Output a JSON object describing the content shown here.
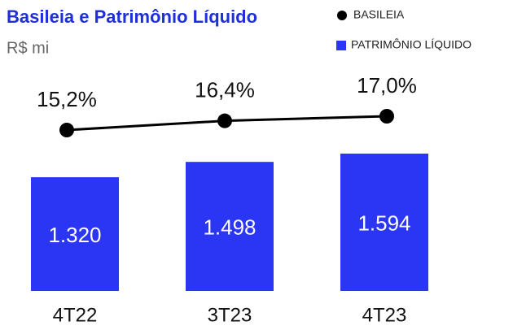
{
  "chart_data": {
    "type": "bar",
    "title": "Basileia e Patrimônio Líquido",
    "subtitle": "R$ mi",
    "categories": [
      "4T22",
      "3T23",
      "4T23"
    ],
    "series": [
      {
        "name": "BASILEIA",
        "type": "line",
        "color": "#000000",
        "values": [
          15.2,
          16.4,
          17.0
        ],
        "value_labels": [
          "15,2%",
          "16,4%",
          "17,0%"
        ]
      },
      {
        "name": "PATRIMÔNIO LÍQUIDO",
        "type": "bar",
        "color": "#2b36f5",
        "values": [
          1320,
          1498,
          1594
        ],
        "value_labels": [
          "1.320",
          "1.498",
          "1.594"
        ]
      }
    ],
    "title_color": "#1f30d8",
    "legend": "top-right"
  }
}
